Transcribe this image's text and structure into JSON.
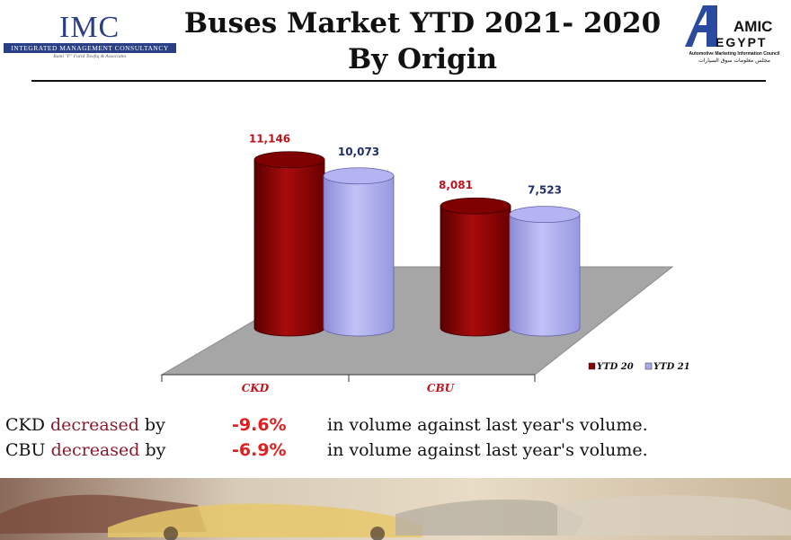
{
  "header": {
    "title_line1": "Buses Market YTD 2021- 2020",
    "title_line2": "By Origin",
    "imc_logo_text": "IMC",
    "imc_logo_subtitle": "Integrated Management Consultancy",
    "imc_logo_tagline": "Rami \"F\" Farid Tawfiq & Associates",
    "amic_logo_line1": "AMIC",
    "amic_logo_line2": "EGYPT",
    "amic_logo_subtitle_en": "Automotive Marketing Information Council",
    "amic_logo_subtitle_ar": "مجلس معلومات سوق السيارات"
  },
  "chart_data": {
    "type": "bar",
    "style": "3d-cylinder",
    "categories": [
      "CKD",
      "CBU"
    ],
    "series": [
      {
        "name": "YTD 20",
        "values": [
          11146,
          8081
        ],
        "value_labels": [
          "11,146",
          "8,081"
        ],
        "color": "#8b0000"
      },
      {
        "name": "YTD 21",
        "values": [
          10073,
          7523
        ],
        "value_labels": [
          "10,073",
          "7,523"
        ],
        "color": "#a9a9f0"
      }
    ],
    "label_colors": {
      "YTD 20": "#c0141c",
      "YTD 21": "#1f2f6e"
    },
    "category_label_color": "#c0141c",
    "floor_color": "#a6a6a6",
    "legend_position": "right",
    "grid": false
  },
  "notes": [
    {
      "subject": "CKD",
      "verb": "decreased",
      "by": "by",
      "percent": "-9.6%",
      "tail": "in volume against last year's volume."
    },
    {
      "subject": "CBU",
      "verb": "decreased",
      "by": "by",
      "percent": "-6.9%",
      "tail": "in volume against last year's volume."
    }
  ]
}
